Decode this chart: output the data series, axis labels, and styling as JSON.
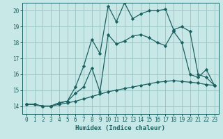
{
  "xlabel": "Humidex (Indice chaleur)",
  "background_color": "#c8e8e8",
  "grid_color": "#a0c8c8",
  "line_color": "#1a6060",
  "xlim": [
    -0.5,
    23.5
  ],
  "ylim": [
    13.5,
    20.5
  ],
  "xticks": [
    0,
    1,
    2,
    3,
    4,
    5,
    6,
    7,
    8,
    9,
    10,
    11,
    12,
    13,
    14,
    15,
    16,
    17,
    18,
    19,
    20,
    21,
    22,
    23
  ],
  "yticks": [
    14,
    15,
    16,
    17,
    18,
    19,
    20
  ],
  "line1_x": [
    0,
    1,
    2,
    3,
    4,
    5,
    6,
    7,
    8,
    9,
    10,
    11,
    12,
    13,
    14,
    15,
    16,
    17,
    18,
    19,
    20,
    21,
    22,
    23
  ],
  "line1_y": [
    14.1,
    14.1,
    14.0,
    14.0,
    14.2,
    14.3,
    15.2,
    16.5,
    18.2,
    17.3,
    20.3,
    19.3,
    20.5,
    19.5,
    19.8,
    20.0,
    20.0,
    20.1,
    18.8,
    19.0,
    18.7,
    16.0,
    15.8,
    15.3
  ],
  "line2_x": [
    0,
    1,
    2,
    3,
    4,
    5,
    6,
    7,
    8,
    9,
    10,
    11,
    12,
    13,
    14,
    15,
    16,
    17,
    18,
    19,
    20,
    21,
    22,
    23
  ],
  "line2_y": [
    14.1,
    14.1,
    14.0,
    14.0,
    14.2,
    14.3,
    14.8,
    15.2,
    16.4,
    14.9,
    18.5,
    17.9,
    18.1,
    18.4,
    18.5,
    18.3,
    18.0,
    17.8,
    18.7,
    18.0,
    16.0,
    15.8,
    16.3,
    15.3
  ],
  "line3_x": [
    0,
    1,
    2,
    3,
    4,
    5,
    6,
    7,
    8,
    9,
    10,
    11,
    12,
    13,
    14,
    15,
    16,
    17,
    18,
    19,
    20,
    21,
    22,
    23
  ],
  "line3_y": [
    14.1,
    14.1,
    14.0,
    14.0,
    14.1,
    14.2,
    14.3,
    14.45,
    14.6,
    14.75,
    14.9,
    15.0,
    15.1,
    15.2,
    15.3,
    15.4,
    15.5,
    15.55,
    15.6,
    15.55,
    15.5,
    15.45,
    15.35,
    15.3
  ]
}
